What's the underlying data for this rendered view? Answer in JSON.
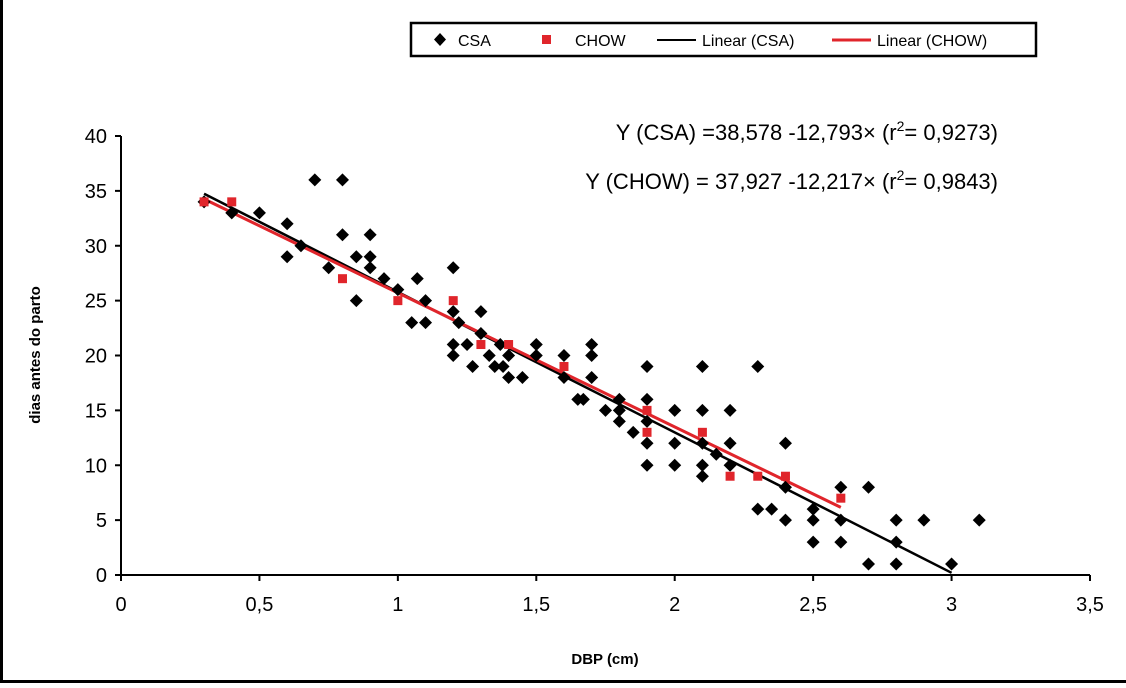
{
  "chart_data": {
    "type": "scatter",
    "xlabel": "DBP (cm)",
    "ylabel": "dias antes do parto",
    "xlim": [
      0,
      3.5
    ],
    "ylim": [
      0,
      40
    ],
    "xticks": [
      "0",
      "0,5",
      "1",
      "1,5",
      "2",
      "2,5",
      "3",
      "3,5"
    ],
    "yticks": [
      "0",
      "5",
      "10",
      "15",
      "20",
      "25",
      "30",
      "35",
      "40"
    ],
    "grid": false,
    "legend_position": "top-right",
    "legend": [
      "CSA",
      "CHOW",
      "Linear (CSA)",
      "Linear (CHOW)"
    ],
    "equations": [
      {
        "text_before": "Y (CSA) =38,578 -12,793× (r",
        "sup": "2",
        "text_after": "= 0,9273)"
      },
      {
        "text_before": "Y (CHOW) = 37,927 -12,217× (r",
        "sup": "2",
        "text_after": "= 0,9843)"
      }
    ],
    "series": [
      {
        "name": "CSA",
        "marker": "diamond",
        "color": "#000000",
        "points": [
          [
            0.3,
            34
          ],
          [
            0.4,
            33
          ],
          [
            0.5,
            33
          ],
          [
            0.6,
            32
          ],
          [
            0.6,
            29
          ],
          [
            0.65,
            30
          ],
          [
            0.7,
            36
          ],
          [
            0.75,
            28
          ],
          [
            0.8,
            36
          ],
          [
            0.8,
            31
          ],
          [
            0.85,
            29
          ],
          [
            0.85,
            25
          ],
          [
            0.9,
            31
          ],
          [
            0.9,
            29
          ],
          [
            0.9,
            28
          ],
          [
            0.95,
            27
          ],
          [
            1.0,
            26
          ],
          [
            1.05,
            23
          ],
          [
            1.07,
            27
          ],
          [
            1.1,
            25
          ],
          [
            1.1,
            23
          ],
          [
            1.2,
            28
          ],
          [
            1.2,
            24
          ],
          [
            1.2,
            21
          ],
          [
            1.2,
            20
          ],
          [
            1.22,
            23
          ],
          [
            1.25,
            21
          ],
          [
            1.27,
            19
          ],
          [
            1.3,
            24
          ],
          [
            1.3,
            22
          ],
          [
            1.33,
            20
          ],
          [
            1.35,
            19
          ],
          [
            1.37,
            21
          ],
          [
            1.38,
            19
          ],
          [
            1.4,
            18
          ],
          [
            1.4,
            20
          ],
          [
            1.45,
            18
          ],
          [
            1.5,
            21
          ],
          [
            1.5,
            20
          ],
          [
            1.6,
            20
          ],
          [
            1.6,
            18
          ],
          [
            1.65,
            16
          ],
          [
            1.67,
            16
          ],
          [
            1.7,
            21
          ],
          [
            1.7,
            20
          ],
          [
            1.7,
            18
          ],
          [
            1.75,
            15
          ],
          [
            1.8,
            16
          ],
          [
            1.8,
            15
          ],
          [
            1.8,
            14
          ],
          [
            1.85,
            13
          ],
          [
            1.9,
            19
          ],
          [
            1.9,
            16
          ],
          [
            1.9,
            14
          ],
          [
            1.9,
            12
          ],
          [
            1.9,
            10
          ],
          [
            2.0,
            15
          ],
          [
            2.0,
            12
          ],
          [
            2.0,
            10
          ],
          [
            2.1,
            19
          ],
          [
            2.1,
            15
          ],
          [
            2.1,
            12
          ],
          [
            2.1,
            10
          ],
          [
            2.1,
            9
          ],
          [
            2.15,
            11
          ],
          [
            2.2,
            15
          ],
          [
            2.2,
            12
          ],
          [
            2.2,
            10
          ],
          [
            2.3,
            19
          ],
          [
            2.3,
            6
          ],
          [
            2.35,
            6
          ],
          [
            2.4,
            12
          ],
          [
            2.4,
            8
          ],
          [
            2.4,
            5
          ],
          [
            2.5,
            6
          ],
          [
            2.5,
            5
          ],
          [
            2.5,
            3
          ],
          [
            2.6,
            8
          ],
          [
            2.6,
            5
          ],
          [
            2.6,
            3
          ],
          [
            2.7,
            8
          ],
          [
            2.7,
            1
          ],
          [
            2.8,
            5
          ],
          [
            2.8,
            3
          ],
          [
            2.8,
            1
          ],
          [
            2.9,
            5
          ],
          [
            3.0,
            1
          ],
          [
            3.1,
            5
          ]
        ]
      },
      {
        "name": "CHOW",
        "marker": "square",
        "color": "#e0252b",
        "points": [
          [
            0.3,
            34
          ],
          [
            0.4,
            34
          ],
          [
            0.8,
            27
          ],
          [
            1.0,
            25
          ],
          [
            1.2,
            25
          ],
          [
            1.3,
            21
          ],
          [
            1.4,
            21
          ],
          [
            1.6,
            19
          ],
          [
            1.9,
            15
          ],
          [
            1.9,
            13
          ],
          [
            2.1,
            13
          ],
          [
            2.2,
            9
          ],
          [
            2.3,
            9
          ],
          [
            2.4,
            9
          ],
          [
            2.6,
            7
          ]
        ]
      }
    ],
    "trendlines": [
      {
        "name": "Linear (CSA)",
        "series": "CSA",
        "intercept": 38.578,
        "slope": -12.793,
        "x_range": [
          0.3,
          3.0
        ],
        "color": "#000000"
      },
      {
        "name": "Linear (CHOW)",
        "series": "CHOW",
        "intercept": 37.927,
        "slope": -12.217,
        "x_range": [
          0.3,
          2.6
        ],
        "color": "#e0252b"
      }
    ]
  }
}
